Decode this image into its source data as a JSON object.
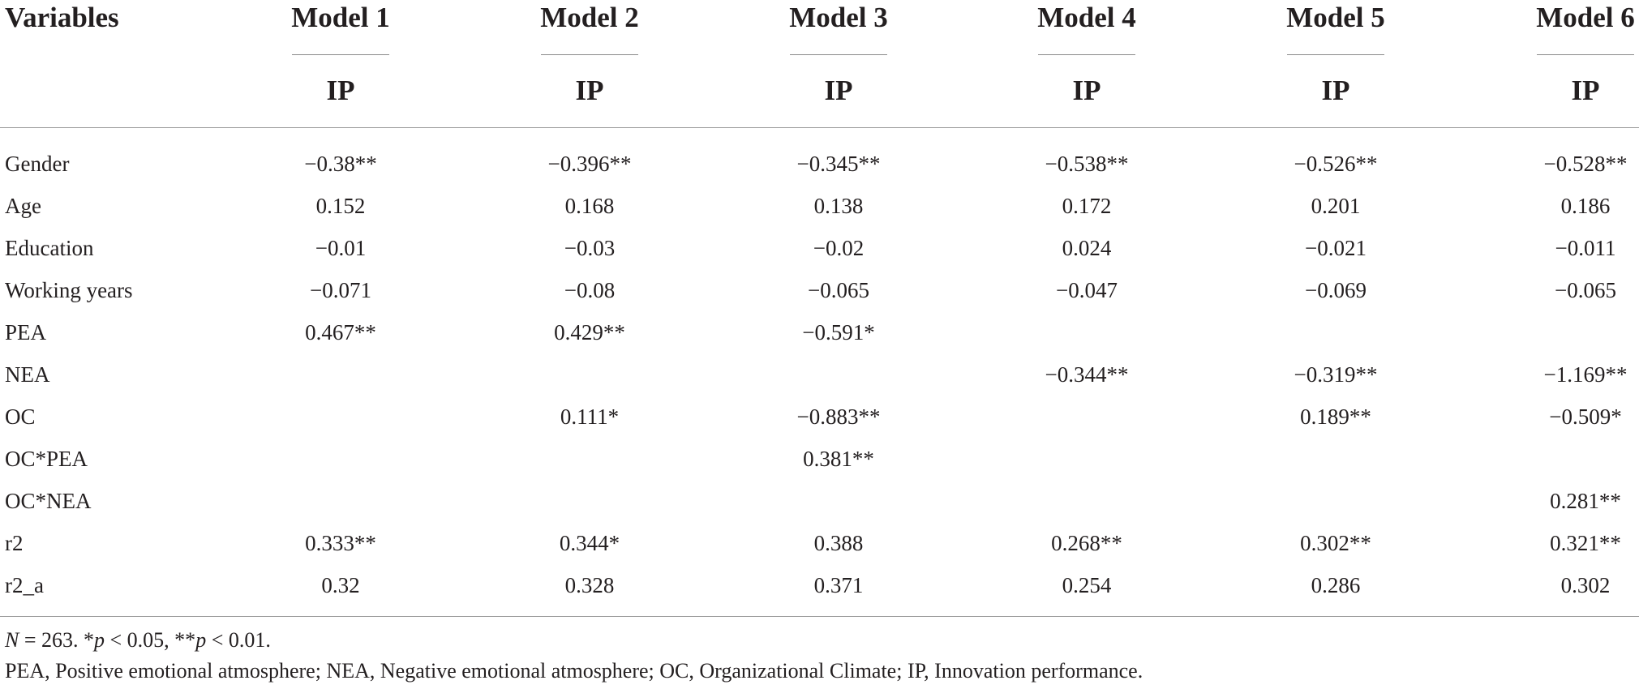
{
  "table": {
    "stub_header": "Variables",
    "models": [
      {
        "label": "Model 1",
        "dependent": "IP"
      },
      {
        "label": "Model 2",
        "dependent": "IP"
      },
      {
        "label": "Model 3",
        "dependent": "IP"
      },
      {
        "label": "Model 4",
        "dependent": "IP"
      },
      {
        "label": "Model 5",
        "dependent": "IP"
      },
      {
        "label": "Model 6",
        "dependent": "IP"
      }
    ],
    "rows": [
      {
        "label": "Gender",
        "values": [
          "−0.38**",
          "−0.396**",
          "−0.345**",
          "−0.538**",
          "−0.526**",
          "−0.528**"
        ]
      },
      {
        "label": "Age",
        "values": [
          "0.152",
          "0.168",
          "0.138",
          "0.172",
          "0.201",
          "0.186"
        ]
      },
      {
        "label": "Education",
        "values": [
          "−0.01",
          "−0.03",
          "−0.02",
          "0.024",
          "−0.021",
          "−0.011"
        ]
      },
      {
        "label": "Working years",
        "values": [
          "−0.071",
          "−0.08",
          "−0.065",
          "−0.047",
          "−0.069",
          "−0.065"
        ]
      },
      {
        "label": "PEA",
        "values": [
          "0.467**",
          "0.429**",
          "−0.591*",
          "",
          "",
          ""
        ]
      },
      {
        "label": "NEA",
        "values": [
          "",
          "",
          "",
          "−0.344**",
          "−0.319**",
          "−1.169**"
        ]
      },
      {
        "label": "OC",
        "values": [
          "",
          "0.111*",
          "−0.883**",
          "",
          "0.189**",
          "−0.509*"
        ]
      },
      {
        "label": "OC*PEA",
        "values": [
          "",
          "",
          "0.381**",
          "",
          "",
          ""
        ]
      },
      {
        "label": "OC*NEA",
        "values": [
          "",
          "",
          "",
          "",
          "",
          "0.281**"
        ]
      },
      {
        "label": "r2",
        "values": [
          "0.333**",
          "0.344*",
          "0.388",
          "0.268**",
          "0.302**",
          "0.321**"
        ]
      },
      {
        "label": "r2_a",
        "values": [
          "0.32",
          "0.328",
          "0.371",
          "0.254",
          "0.286",
          "0.302"
        ]
      }
    ]
  },
  "footnotes": {
    "n_label": "N",
    "n_value": " = 263. *",
    "p1": "p",
    "p1_rest": " < 0.05, **",
    "p2": "p",
    "p2_rest": " < 0.01.",
    "abbreviations": "PEA, Positive emotional atmosphere; NEA, Negative emotional atmosphere; OC, Organizational Climate; IP, Innovation performance."
  }
}
